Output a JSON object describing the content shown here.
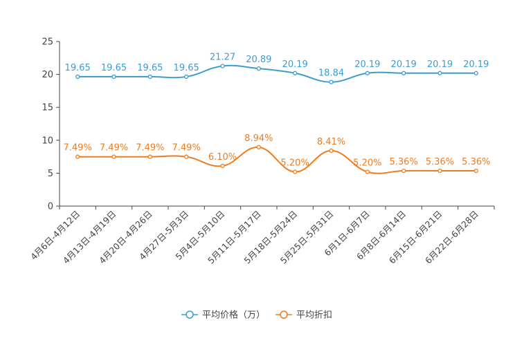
{
  "chart_data": {
    "type": "line",
    "categories": [
      "4月6日-4月12日",
      "4月13日-4月19日",
      "4月20日-4月26日",
      "4月27日-5月3日",
      "5月4日-5月10日",
      "5月11日-5月17日",
      "5月18日-5月24日",
      "5月25日-5月31日",
      "6月1日-6月7日",
      "6月8日-6月14日",
      "6月15日-6月21日",
      "6月22日-6月28日"
    ],
    "series": [
      {
        "name": "平均价格（万）",
        "color": "#3a9ccf",
        "values": [
          19.65,
          19.65,
          19.65,
          19.65,
          21.27,
          20.89,
          20.19,
          18.84,
          20.19,
          20.19,
          20.19,
          20.19
        ],
        "labels": [
          "19.65",
          "19.65",
          "19.65",
          "19.65",
          "21.27",
          "20.89",
          "20.19",
          "18.84",
          "20.19",
          "20.19",
          "20.19",
          "20.19"
        ]
      },
      {
        "name": "平均折扣",
        "color": "#f07b1d",
        "values": [
          7.49,
          7.49,
          7.49,
          7.49,
          6.1,
          8.94,
          5.2,
          8.41,
          5.2,
          5.36,
          5.36,
          5.36
        ],
        "labels": [
          "7.49%",
          "7.49%",
          "7.49%",
          "7.49%",
          "6.10%",
          "8.94%",
          "5.20%",
          "8.41%",
          "5.20%",
          "5.36%",
          "5.36%",
          "5.36%"
        ]
      }
    ],
    "yticks": [
      "0",
      "5",
      "10",
      "15",
      "20",
      "25"
    ],
    "ylim": [
      0,
      25
    ],
    "title": "",
    "xlabel": "",
    "ylabel": "",
    "legend_position": "bottom-center"
  }
}
